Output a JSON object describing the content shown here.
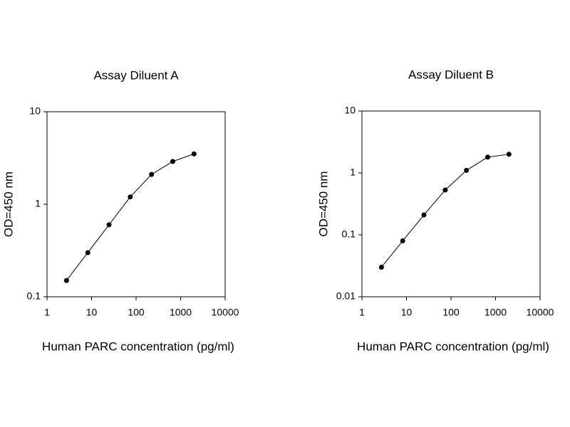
{
  "chart_data": [
    {
      "type": "line",
      "title": "Assay Diluent A",
      "x_label": "Human PARC concentration (pg/ml)",
      "y_label": "OD=450 nm",
      "x": [
        2.74,
        8.23,
        24.7,
        74,
        222,
        667,
        2000
      ],
      "values": [
        0.15,
        0.3,
        0.6,
        1.2,
        2.1,
        2.9,
        3.5
      ],
      "color": "#000000",
      "x_log": true,
      "y_log": true,
      "xlim": [
        1,
        10000
      ],
      "xticks": [
        1,
        10,
        100,
        1000,
        10000
      ],
      "ylim": [
        0.1,
        10
      ],
      "yticks": [
        0.1,
        1,
        10
      ]
    },
    {
      "type": "line",
      "title": "Assay Diluent B",
      "x_label": "Human PARC concentration (pg/ml)",
      "y_label": "OD=450 nm",
      "x": [
        2.74,
        8.23,
        24.7,
        74,
        222,
        667,
        2000
      ],
      "values": [
        0.03,
        0.08,
        0.21,
        0.53,
        1.1,
        1.8,
        2.0
      ],
      "color": "#000000",
      "x_log": true,
      "y_log": true,
      "xlim": [
        1,
        10000
      ],
      "xticks": [
        1,
        10,
        100,
        1000,
        10000
      ],
      "ylim": [
        0.01,
        10
      ],
      "yticks": [
        0.01,
        0.1,
        1,
        10
      ]
    }
  ]
}
